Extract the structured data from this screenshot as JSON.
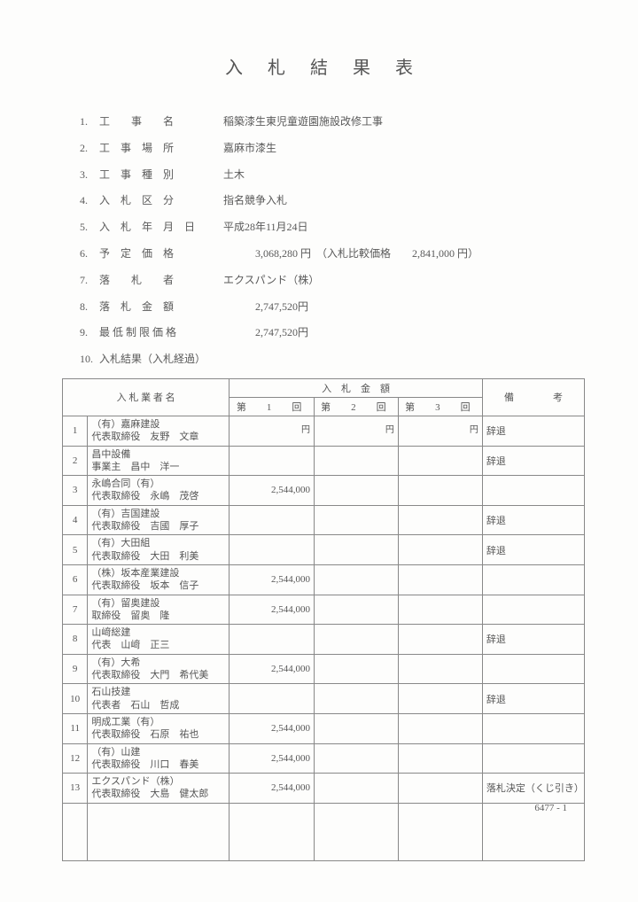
{
  "title": "入札結果表",
  "info": [
    {
      "num": "1.",
      "label": "工　　事　　名",
      "value": "稲築漆生東児童遊園施設改修工事"
    },
    {
      "num": "2.",
      "label": "工　事　場　所",
      "value": "嘉麻市漆生"
    },
    {
      "num": "3.",
      "label": "工　事　種　別",
      "value": "土木"
    },
    {
      "num": "4.",
      "label": "入　札　区　分",
      "value": "指名競争入札"
    },
    {
      "num": "5.",
      "label": "入　札　年　月　日",
      "value": "平成28年11月24日"
    },
    {
      "num": "6.",
      "label": "予　定　価　格",
      "value": "　　　3,068,280 円　（入札比較価格　　2,841,000 円）"
    },
    {
      "num": "7.",
      "label": "落　　札　　者",
      "value": "エクスパンド（株）"
    },
    {
      "num": "8.",
      "label": "落　札　金　額",
      "value": "　　　2,747,520円"
    },
    {
      "num": "9.",
      "label": "最 低 制 限 価 格",
      "value": "　　　2,747,520円"
    },
    {
      "num": "10.",
      "label": "入札結果（入札経過）",
      "value": ""
    }
  ],
  "table": {
    "header": {
      "bidder": "入 札 業 者 名",
      "amount_header": "入　札　金　額",
      "round1": "第　1　回",
      "round2": "第　2　回",
      "round3": "第　3　回",
      "note": "備　　　　考",
      "yen": "円"
    },
    "rows": [
      {
        "n": "1",
        "name1": "（有）嘉麻建設",
        "name2": "代表取締役　友野　文章",
        "a1": "",
        "a2": "",
        "a3": "",
        "note": "辞退"
      },
      {
        "n": "2",
        "name1": "昌中設備",
        "name2": "事業主　昌中　洋一",
        "a1": "",
        "a2": "",
        "a3": "",
        "note": "辞退"
      },
      {
        "n": "3",
        "name1": "永嶋合同（有）",
        "name2": "代表取締役　永嶋　茂啓",
        "a1": "2,544,000",
        "a2": "",
        "a3": "",
        "note": ""
      },
      {
        "n": "4",
        "name1": "（有）吉国建設",
        "name2": "代表取締役　吉國　厚子",
        "a1": "",
        "a2": "",
        "a3": "",
        "note": "辞退"
      },
      {
        "n": "5",
        "name1": "（有）大田組",
        "name2": "代表取締役　大田　利美",
        "a1": "",
        "a2": "",
        "a3": "",
        "note": "辞退"
      },
      {
        "n": "6",
        "name1": "（株）坂本産業建設",
        "name2": "代表取締役　坂本　信子",
        "a1": "2,544,000",
        "a2": "",
        "a3": "",
        "note": ""
      },
      {
        "n": "7",
        "name1": "（有）留奥建設",
        "name2": "取締役　留奥　隆",
        "a1": "2,544,000",
        "a2": "",
        "a3": "",
        "note": ""
      },
      {
        "n": "8",
        "name1": "山﨑総建",
        "name2": "代表　山﨑　正三",
        "a1": "",
        "a2": "",
        "a3": "",
        "note": "辞退"
      },
      {
        "n": "9",
        "name1": "（有）大希",
        "name2": "代表取締役　大門　希代美",
        "a1": "2,544,000",
        "a2": "",
        "a3": "",
        "note": ""
      },
      {
        "n": "10",
        "name1": "石山技建",
        "name2": "代表者　石山　哲成",
        "a1": "",
        "a2": "",
        "a3": "",
        "note": "辞退"
      },
      {
        "n": "11",
        "name1": "明成工業（有）",
        "name2": "代表取締役　石原　祐也",
        "a1": "2,544,000",
        "a2": "",
        "a3": "",
        "note": ""
      },
      {
        "n": "12",
        "name1": "（有）山建",
        "name2": "代表取締役　川口　春美",
        "a1": "2,544,000",
        "a2": "",
        "a3": "",
        "note": ""
      },
      {
        "n": "13",
        "name1": "エクスパンド（株）",
        "name2": "代表取締役　大島　健太郎",
        "a1": "2,544,000",
        "a2": "",
        "a3": "",
        "note": "落札決定（くじ引き）"
      }
    ]
  },
  "footer": "6477 - 1"
}
